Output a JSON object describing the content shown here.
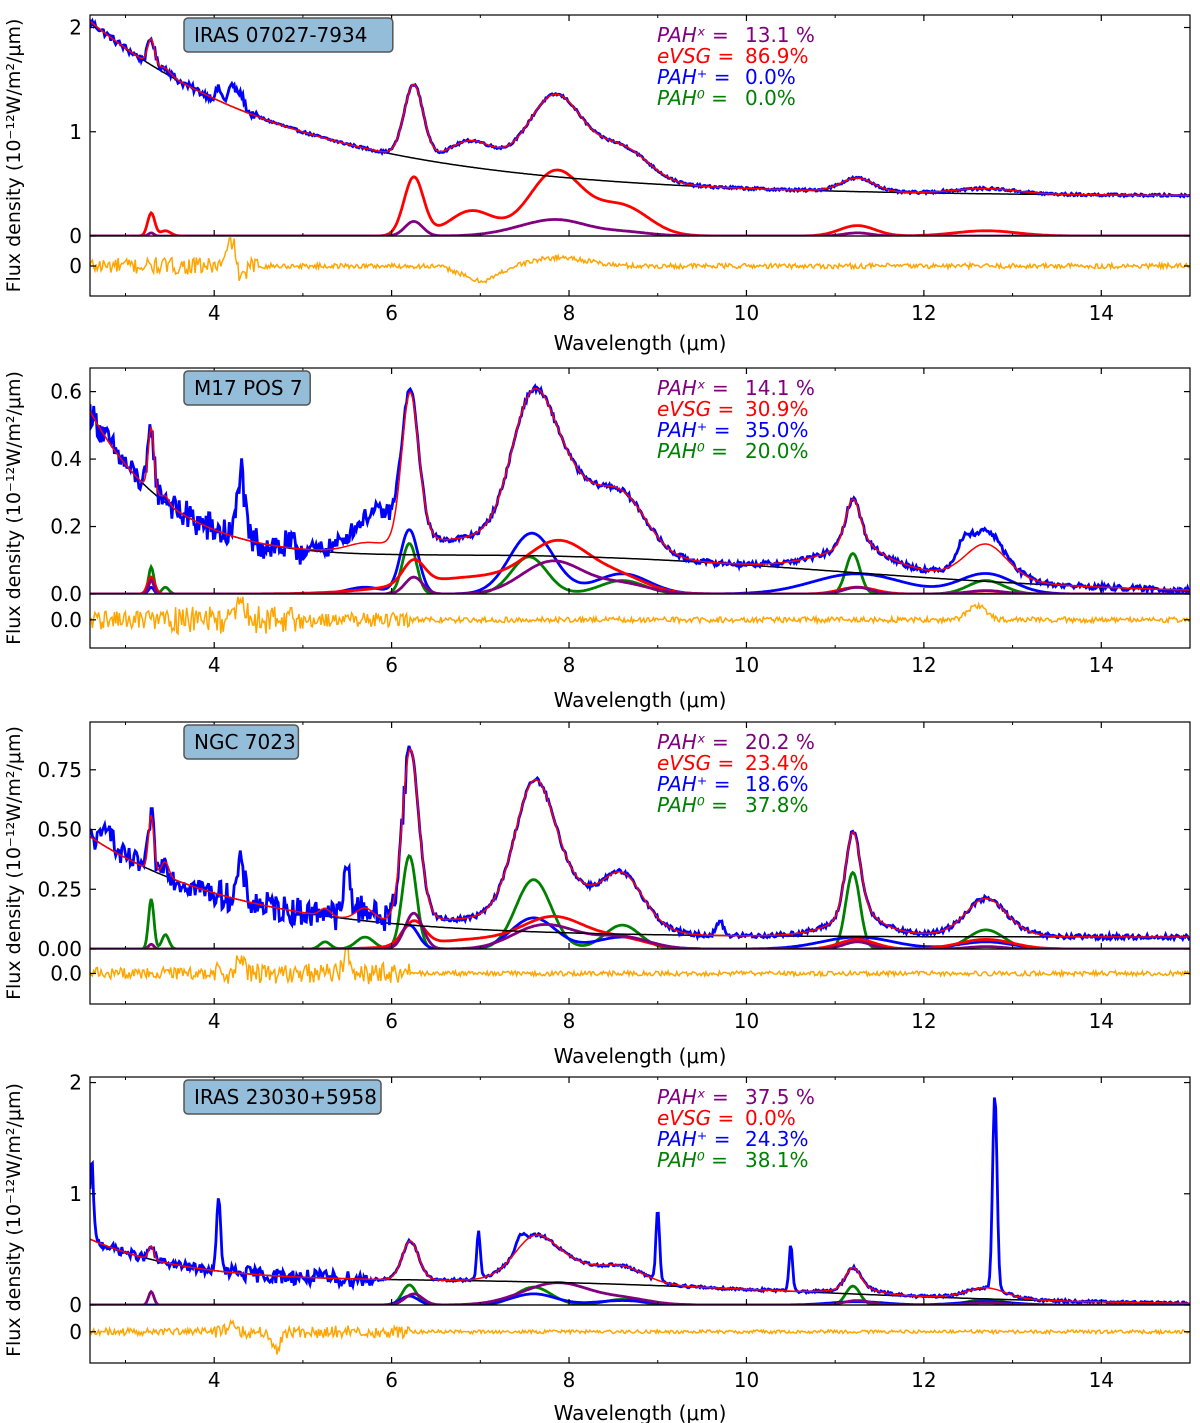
{
  "chart_data": {
    "type": "line",
    "shared": {
      "xlabel": "Wavelength (μm)",
      "ylabel": "Flux density (10⁻¹²W/m²/μm)",
      "xlim": [
        2.6,
        15.0
      ],
      "x_ticks": [
        4,
        6,
        8,
        10,
        12,
        14
      ],
      "x_tick_labels": [
        "4",
        "6",
        "8",
        "10",
        "12",
        "14"
      ],
      "legend_names": [
        "PAHˣ =",
        "eVSG =",
        "PAH⁺ =",
        "PAH⁰ ="
      ],
      "colors": {
        "observed": "#0000ff",
        "model": "#ff0000",
        "continuum": "#000000",
        "pahx": "#800080",
        "evsg": "#ff0000",
        "pahp": "#0000ff",
        "pah0": "#008000",
        "residual": "#ffa500",
        "label_box": "#94bdda"
      }
    },
    "panels": [
      {
        "title": "IRAS  07027-7934",
        "ylim": [
          0,
          2.12
        ],
        "y_ticks": [
          0,
          1,
          2
        ],
        "y_tick_labels": [
          "0",
          "1",
          "2"
        ],
        "resid_ylim": [
          -0.14,
          0.14
        ],
        "resid_ticks": [
          0
        ],
        "resid_tick_labels": [
          "0"
        ],
        "fractions": [
          {
            "name": "PAHˣ =",
            "value": "13.1 %"
          },
          {
            "name": "eVSG =",
            "value": "86.9%"
          },
          {
            "name": "PAH⁺ =",
            "value": "0.0%"
          },
          {
            "name": "PAH⁰ =",
            "value": "0.0%"
          }
        ],
        "continuum": {
          "a": 0.38,
          "b": 1.68,
          "c": 2.6,
          "d": 2.4,
          "e": 0.0,
          "f": 11.5,
          "g": 2.0
        },
        "bands": {
          "evsg": [
            [
              3.29,
              0.04,
              0.22
            ],
            [
              3.45,
              0.06,
              0.05
            ],
            [
              6.25,
              0.11,
              0.56
            ],
            [
              6.9,
              0.25,
              0.24
            ],
            [
              7.85,
              0.3,
              0.62
            ],
            [
              8.6,
              0.3,
              0.28
            ],
            [
              11.25,
              0.2,
              0.1
            ],
            [
              12.7,
              0.35,
              0.05
            ]
          ],
          "pahx": [
            [
              3.29,
              0.03,
              0.03
            ],
            [
              6.25,
              0.1,
              0.14
            ],
            [
              7.6,
              0.35,
              0.08
            ],
            [
              7.95,
              0.3,
              0.1
            ],
            [
              8.6,
              0.3,
              0.04
            ],
            [
              11.25,
              0.15,
              0.03
            ]
          ],
          "pahp": [],
          "pah0": []
        },
        "obs_noise": [
          [
            2.6,
            4.5,
            0.035
          ],
          [
            4.5,
            15,
            0.012
          ]
        ],
        "obs_extra": [
          [
            4.2,
            0.04,
            0.2
          ],
          [
            4.3,
            0.04,
            0.15
          ],
          [
            4.05,
            0.03,
            0.12
          ]
        ],
        "obs_scale": [
          [
            6.0,
            6.5,
            1.0
          ]
        ],
        "resid": {
          "noise": [
            [
              2.6,
              4.5,
              0.04
            ],
            [
              4.5,
              15,
              0.012
            ]
          ],
          "bumps": [
            [
              7.0,
              0.2,
              -0.07
            ],
            [
              7.9,
              0.3,
              0.04
            ],
            [
              4.2,
              0.05,
              0.12
            ],
            [
              4.3,
              0.04,
              -0.08
            ]
          ]
        }
      },
      {
        "title": "M17 POS 7",
        "ylim": [
          0,
          0.67
        ],
        "y_ticks": [
          0.0,
          0.2,
          0.4,
          0.6
        ],
        "y_tick_labels": [
          "0.0",
          "0.2",
          "0.4",
          "0.6"
        ],
        "resid_ylim": [
          -0.06,
          0.055
        ],
        "resid_ticks": [
          0.0
        ],
        "resid_tick_labels": [
          "0.0"
        ],
        "fractions": [
          {
            "name": "PAHˣ =",
            "value": "14.1 %"
          },
          {
            "name": "eVSG =",
            "value": "30.9%"
          },
          {
            "name": "PAH⁺ =",
            "value": "35.0%"
          },
          {
            "name": "PAH⁰ =",
            "value": "20.0%"
          }
        ],
        "continuum": {
          "a": 0.0,
          "b": 0.5,
          "c": 2.6,
          "d": 1.0,
          "e": 0.11,
          "f": 7.5,
          "g": 0.0
        },
        "bands": {
          "evsg": [
            [
              3.29,
              0.04,
              0.05
            ],
            [
              6.25,
              0.12,
              0.07
            ],
            [
              7.0,
              0.8,
              0.05
            ],
            [
              7.9,
              0.35,
              0.13
            ],
            [
              8.6,
              0.3,
              0.04
            ],
            [
              11.25,
              0.2,
              0.02
            ]
          ],
          "pahx": [
            [
              3.29,
              0.03,
              0.04
            ],
            [
              6.25,
              0.1,
              0.05
            ],
            [
              7.65,
              0.3,
              0.05
            ],
            [
              7.95,
              0.3,
              0.06
            ],
            [
              8.6,
              0.3,
              0.03
            ],
            [
              11.25,
              0.15,
              0.02
            ],
            [
              12.7,
              0.2,
              0.01
            ]
          ],
          "pahp": [
            [
              3.29,
              0.03,
              0.02
            ],
            [
              5.7,
              0.2,
              0.02
            ],
            [
              6.2,
              0.1,
              0.19
            ],
            [
              7.58,
              0.25,
              0.18
            ],
            [
              8.6,
              0.3,
              0.06
            ],
            [
              11.25,
              0.5,
              0.06
            ],
            [
              12.7,
              0.3,
              0.06
            ]
          ],
          "pah0": [
            [
              3.29,
              0.03,
              0.08
            ],
            [
              3.45,
              0.04,
              0.02
            ],
            [
              6.2,
              0.08,
              0.15
            ],
            [
              7.55,
              0.2,
              0.11
            ],
            [
              8.6,
              0.25,
              0.04
            ],
            [
              11.2,
              0.08,
              0.12
            ],
            [
              12.7,
              0.2,
              0.04
            ]
          ]
        },
        "obs_noise": [
          [
            2.6,
            3.6,
            0.04
          ],
          [
            3.6,
            5.0,
            0.05
          ],
          [
            5.0,
            6.1,
            0.025
          ],
          [
            6.1,
            15,
            0.008
          ]
        ],
        "obs_extra": [
          [
            4.3,
            0.04,
            0.2
          ],
          [
            5.7,
            0.2,
            0.05
          ],
          [
            5.9,
            0.15,
            0.06
          ],
          [
            12.45,
            0.08,
            0.05
          ],
          [
            12.7,
            0.15,
            0.04
          ]
        ],
        "obs_scale": [],
        "resid": {
          "noise": [
            [
              2.6,
              3.5,
              0.02
            ],
            [
              3.5,
              5.0,
              0.03
            ],
            [
              5.0,
              6.2,
              0.015
            ],
            [
              6.2,
              15,
              0.006
            ]
          ],
          "bumps": [
            [
              4.3,
              0.04,
              0.05
            ],
            [
              12.6,
              0.1,
              0.03
            ]
          ]
        }
      },
      {
        "title": "NGC 7023",
        "ylim": [
          0,
          0.95
        ],
        "y_ticks": [
          0.0,
          0.25,
          0.5,
          0.75
        ],
        "y_tick_labels": [
          "0.00",
          "0.25",
          "0.50",
          "0.75"
        ],
        "resid_ylim": [
          -0.1,
          0.08
        ],
        "resid_ticks": [
          0.0
        ],
        "resid_tick_labels": [
          "0.0"
        ],
        "fractions": [
          {
            "name": "PAHˣ =",
            "value": "20.2 %"
          },
          {
            "name": "eVSG =",
            "value": "23.4%"
          },
          {
            "name": "PAH⁺ =",
            "value": "18.6%"
          },
          {
            "name": "PAH⁰ =",
            "value": "37.8%"
          }
        ],
        "continuum": {
          "a": 0.05,
          "b": 0.42,
          "c": 2.6,
          "d": 1.7,
          "e": 0.0,
          "f": 7.5,
          "g": 0.0
        },
        "bands": {
          "evsg": [
            [
              6.25,
              0.12,
              0.1
            ],
            [
              7.0,
              0.6,
              0.04
            ],
            [
              7.85,
              0.35,
              0.12
            ],
            [
              8.6,
              0.3,
              0.04
            ],
            [
              11.25,
              0.2,
              0.04
            ],
            [
              12.7,
              0.3,
              0.04
            ]
          ],
          "pahx": [
            [
              3.29,
              0.03,
              0.02
            ],
            [
              6.25,
              0.1,
              0.15
            ],
            [
              7.6,
              0.3,
              0.07
            ],
            [
              7.95,
              0.3,
              0.05
            ],
            [
              8.6,
              0.3,
              0.05
            ],
            [
              11.25,
              0.15,
              0.03
            ],
            [
              12.7,
              0.2,
              0.01
            ]
          ],
          "pahp": [
            [
              6.2,
              0.1,
              0.1
            ],
            [
              7.6,
              0.25,
              0.13
            ],
            [
              8.6,
              0.3,
              0.05
            ],
            [
              11.25,
              0.4,
              0.05
            ],
            [
              12.7,
              0.3,
              0.03
            ]
          ],
          "pah0": [
            [
              3.29,
              0.03,
              0.21
            ],
            [
              3.45,
              0.04,
              0.06
            ],
            [
              5.25,
              0.06,
              0.03
            ],
            [
              5.7,
              0.1,
              0.05
            ],
            [
              6.2,
              0.08,
              0.39
            ],
            [
              7.6,
              0.2,
              0.29
            ],
            [
              8.6,
              0.2,
              0.1
            ],
            [
              11.2,
              0.08,
              0.32
            ],
            [
              12.7,
              0.2,
              0.08
            ]
          ]
        },
        "obs_noise": [
          [
            2.6,
            4.0,
            0.05
          ],
          [
            4.0,
            6.2,
            0.06
          ],
          [
            6.2,
            15,
            0.01
          ]
        ],
        "obs_extra": [
          [
            2.8,
            0.04,
            0.12
          ],
          [
            4.3,
            0.04,
            0.15
          ],
          [
            5.5,
            0.04,
            0.2
          ],
          [
            9.7,
            0.04,
            0.06
          ]
        ],
        "obs_scale": [],
        "resid": {
          "noise": [
            [
              2.6,
              4.0,
              0.02
            ],
            [
              4.0,
              6.2,
              0.035
            ],
            [
              6.2,
              15,
              0.008
            ]
          ],
          "bumps": [
            [
              4.3,
              0.04,
              0.05
            ],
            [
              5.5,
              0.04,
              0.07
            ]
          ]
        }
      },
      {
        "title": "IRAS 23030+5958",
        "ylim": [
          0,
          2.05
        ],
        "y_ticks": [
          0,
          1,
          2
        ],
        "y_tick_labels": [
          "0",
          "1",
          "2"
        ],
        "resid_ylim": [
          -0.35,
          0.3
        ],
        "resid_ticks": [
          0
        ],
        "resid_tick_labels": [
          "0"
        ],
        "fractions": [
          {
            "name": "PAHˣ =",
            "value": "37.5 %"
          },
          {
            "name": "eVSG =",
            "value": "0.0%"
          },
          {
            "name": "PAH⁺ =",
            "value": "24.3%"
          },
          {
            "name": "PAH⁰ =",
            "value": "38.1%"
          }
        ],
        "continuum": {
          "a": 0.0,
          "b": 0.5,
          "c": 2.6,
          "d": 1.3,
          "e": 0.2,
          "f": 7.0,
          "g": 0.0
        },
        "bands": {
          "evsg": [],
          "pahx": [
            [
              3.29,
              0.03,
              0.12
            ],
            [
              6.25,
              0.1,
              0.1
            ],
            [
              7.7,
              0.35,
              0.12
            ],
            [
              8.0,
              0.3,
              0.1
            ],
            [
              8.6,
              0.3,
              0.06
            ],
            [
              11.25,
              0.15,
              0.04
            ],
            [
              12.7,
              0.2,
              0.02
            ]
          ],
          "pahp": [
            [
              6.2,
              0.1,
              0.08
            ],
            [
              7.6,
              0.25,
              0.1
            ],
            [
              8.6,
              0.3,
              0.04
            ],
            [
              11.25,
              0.3,
              0.03
            ],
            [
              12.7,
              0.3,
              0.03
            ]
          ],
          "pah0": [
            [
              6.2,
              0.08,
              0.18
            ],
            [
              7.6,
              0.2,
              0.16
            ],
            [
              8.6,
              0.2,
              0.05
            ],
            [
              11.2,
              0.08,
              0.17
            ],
            [
              12.7,
              0.2,
              0.05
            ]
          ]
        },
        "obs_noise": [
          [
            2.6,
            4.0,
            0.04
          ],
          [
            4.0,
            5.8,
            0.07
          ],
          [
            5.8,
            15,
            0.012
          ]
        ],
        "obs_extra": [
          [
            2.62,
            0.02,
            0.7
          ],
          [
            4.05,
            0.02,
            0.72
          ],
          [
            6.98,
            0.02,
            0.42
          ],
          [
            9.0,
            0.02,
            0.65
          ],
          [
            10.5,
            0.02,
            0.42
          ],
          [
            12.8,
            0.025,
            1.75
          ],
          [
            7.45,
            0.05,
            0.1
          ]
        ],
        "obs_scale": [],
        "resid": {
          "noise": [
            [
              2.6,
              4.0,
              0.04
            ],
            [
              4.0,
              6.2,
              0.07
            ],
            [
              6.2,
              15,
              0.02
            ]
          ],
          "bumps": [
            [
              4.7,
              0.04,
              -0.2
            ],
            [
              4.2,
              0.05,
              0.1
            ]
          ]
        }
      }
    ]
  }
}
